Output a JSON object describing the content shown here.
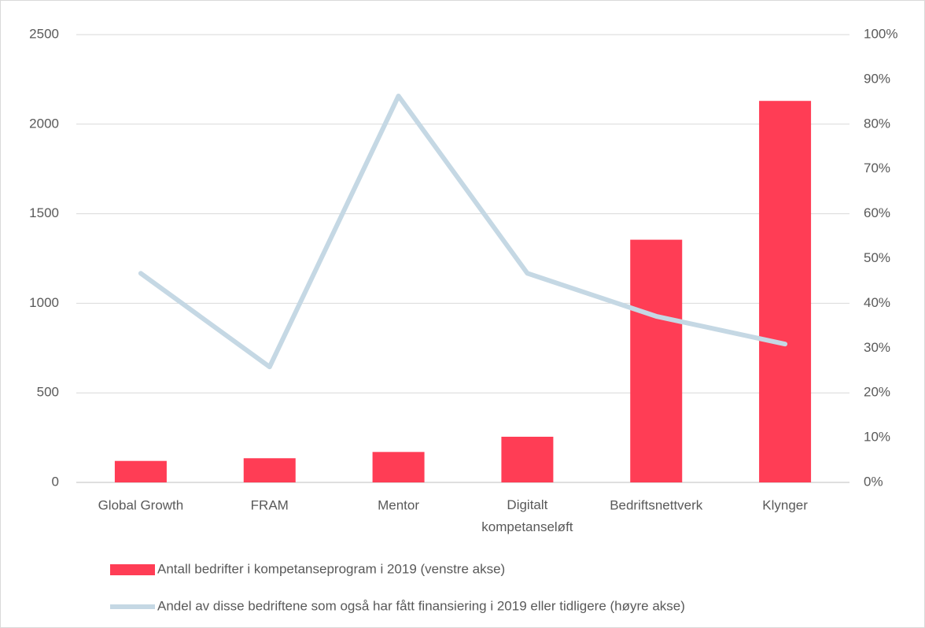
{
  "chart_data": {
    "type": "bar_line",
    "categories": [
      "Global Growth",
      "FRAM",
      "Mentor",
      "Digitalt kompetanseløft",
      "Bedriftsnettverk",
      "Klynger"
    ],
    "series": [
      {
        "name": "Antall bedrifter i kompetanseprogram i 2019 (venstre akse)",
        "type": "bar",
        "color": "#ff3d55",
        "values": [
          120,
          135,
          170,
          255,
          1355,
          2130
        ]
      },
      {
        "name": "Andel av disse bedriftene som også har fått finansiering i 2019 eller tidligere (høyre akse)",
        "type": "line",
        "axis": "y2",
        "color": "#c5d8e4",
        "values": [
          46.7,
          25.8,
          86.3,
          46.7,
          37.1,
          30.9
        ]
      }
    ],
    "ylim": [
      0,
      2500
    ],
    "yticks": [
      0,
      500,
      1000,
      1500,
      2000,
      2500
    ],
    "y2lim": [
      0,
      100
    ],
    "y2ticks": [
      {
        "value": 0,
        "label": "0%"
      },
      {
        "value": 10,
        "label": "10%"
      },
      {
        "value": 20,
        "label": "20%"
      },
      {
        "value": 30,
        "label": "30%"
      },
      {
        "value": 40,
        "label": "40%"
      },
      {
        "value": 50,
        "label": "50%"
      },
      {
        "value": 60,
        "label": "60%"
      },
      {
        "value": 70,
        "label": "70%"
      },
      {
        "value": 80,
        "label": "80%"
      },
      {
        "value": 90,
        "label": "90%"
      },
      {
        "value": 100,
        "label": "100%"
      }
    ],
    "grid": true,
    "legend": "bottom"
  }
}
